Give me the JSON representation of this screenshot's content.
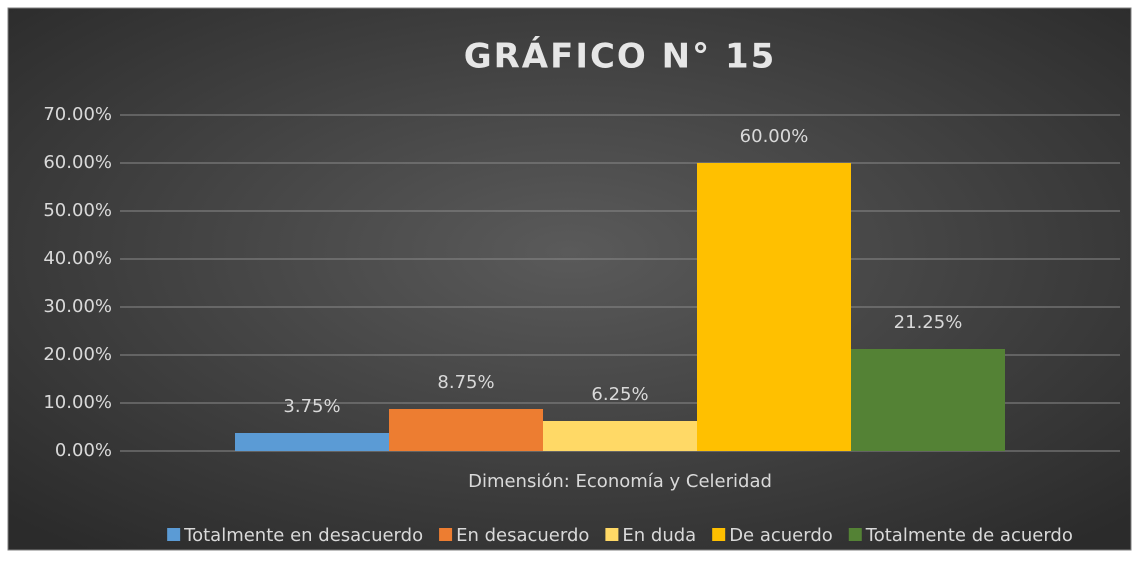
{
  "chart_data": {
    "type": "bar",
    "title": "GRÁFICO N° 15",
    "categories": [
      "Dimensión: Economía y Celeridad"
    ],
    "series": [
      {
        "name": "Totalmente en desacuerdo",
        "color": "#5b9bd5",
        "values": [
          3.75
        ],
        "value_labels": [
          "3.75%"
        ]
      },
      {
        "name": "En desacuerdo",
        "color": "#ed7d31",
        "values": [
          8.75
        ],
        "value_labels": [
          "8.75%"
        ]
      },
      {
        "name": "En duda",
        "color": "#ffd966",
        "values": [
          6.25
        ],
        "value_labels": [
          "6.25%"
        ]
      },
      {
        "name": "De acuerdo",
        "color": "#ffc000",
        "values": [
          60
        ],
        "value_labels": [
          "60.00%"
        ]
      },
      {
        "name": "Totalmente de acuerdo",
        "color": "#548235",
        "values": [
          21.25
        ],
        "value_labels": [
          "21.25%"
        ]
      }
    ],
    "ylim": [
      0,
      70
    ],
    "yticks": [
      {
        "value": 0,
        "label": "0.00%"
      },
      {
        "value": 10,
        "label": "10.00%"
      },
      {
        "value": 20,
        "label": "20.00%"
      },
      {
        "value": 30,
        "label": "30.00%"
      },
      {
        "value": 40,
        "label": "40.00%"
      },
      {
        "value": 50,
        "label": "50.00%"
      },
      {
        "value": 60,
        "label": "60.00%"
      },
      {
        "value": 70,
        "label": "70.00%"
      }
    ],
    "grid": true,
    "legend": "bottom"
  }
}
